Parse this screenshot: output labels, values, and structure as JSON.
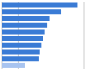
{
  "chart_data": {
    "type": "bar",
    "orientation": "horizontal",
    "categories": [
      null,
      null,
      null,
      null,
      null,
      null,
      null,
      null,
      null,
      null
    ],
    "values": [
      9200,
      7200,
      5800,
      5500,
      5200,
      5000,
      4800,
      4600,
      4500,
      2800
    ],
    "colors": [
      "#3a7bd5",
      "#3a7bd5",
      "#3a7bd5",
      "#3a7bd5",
      "#3a7bd5",
      "#3a7bd5",
      "#3a7bd5",
      "#3a7bd5",
      "#3a7bd5",
      "#a8c4f0"
    ],
    "xlim": [
      0,
      10000
    ],
    "xticks": [
      0,
      2000,
      4000,
      6000,
      8000,
      10000
    ],
    "grid": true,
    "tick_labels": false
  }
}
